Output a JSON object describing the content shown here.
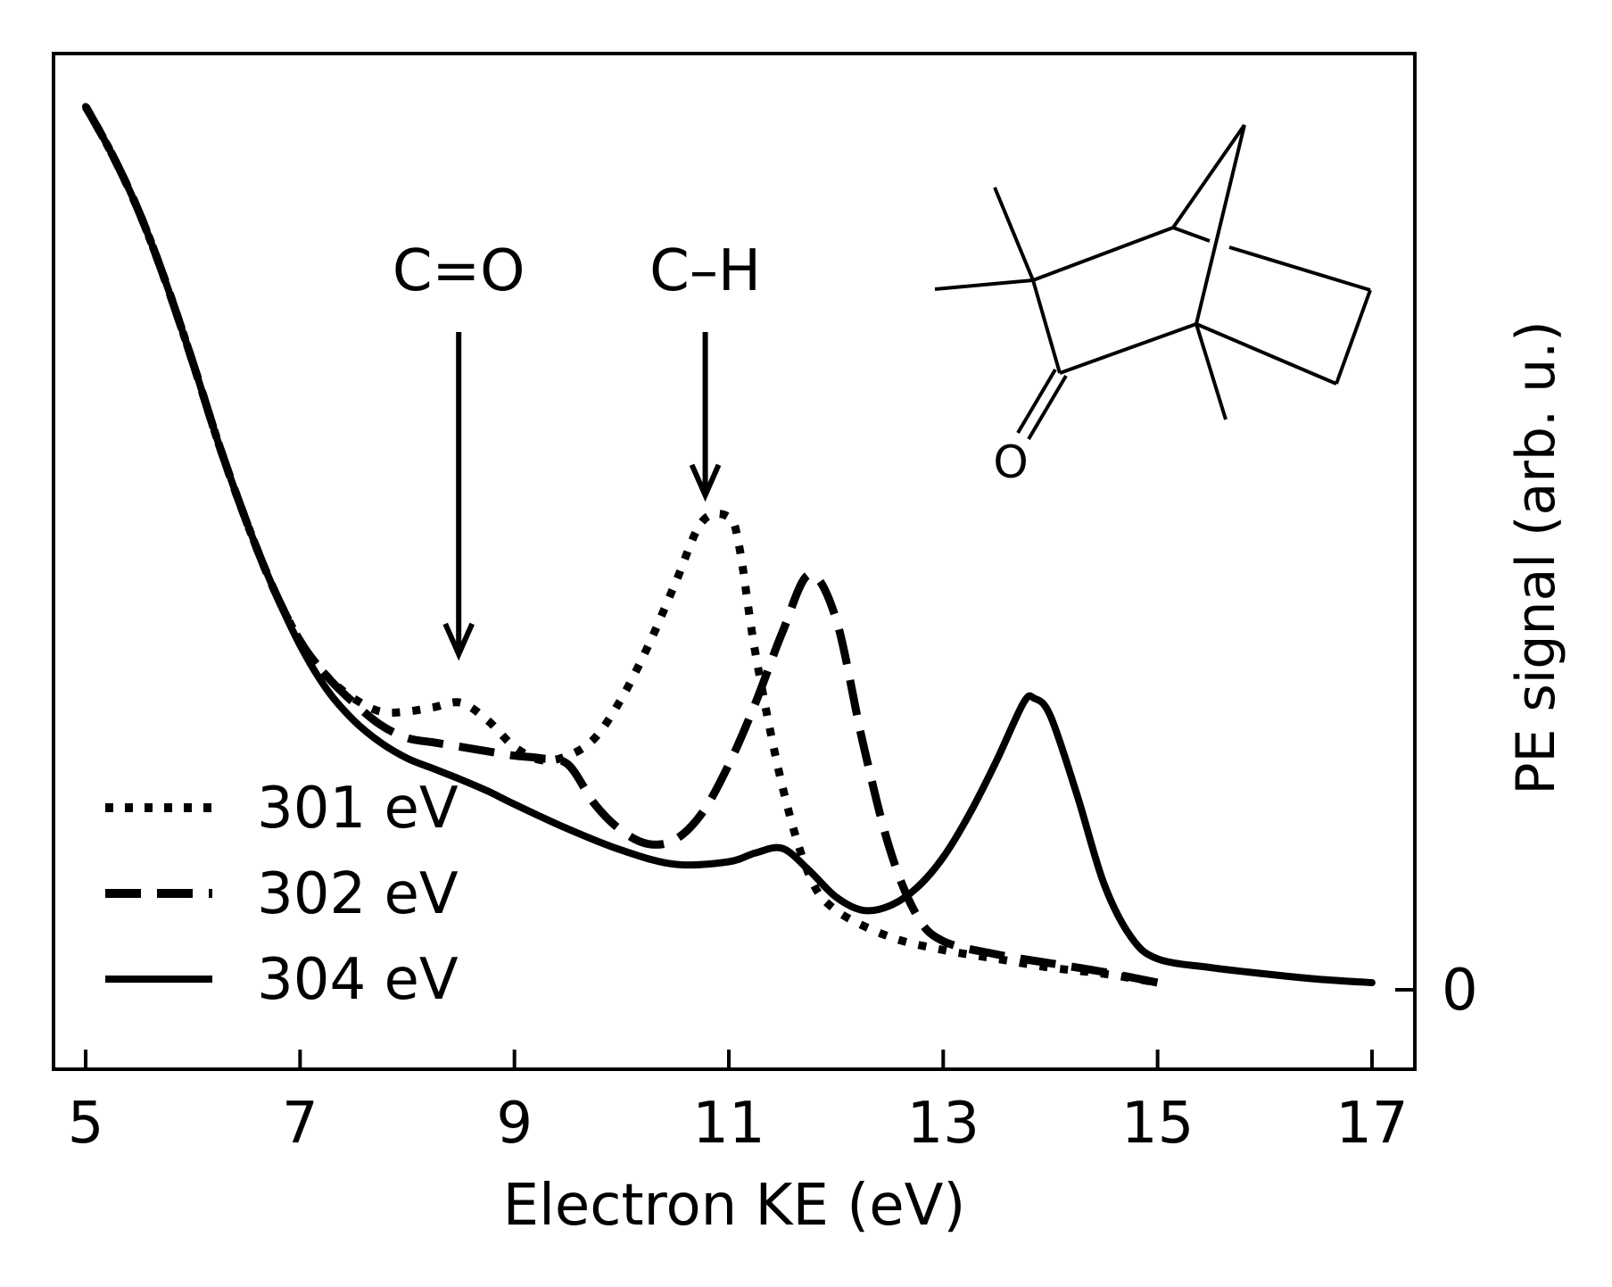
{
  "chart_data": {
    "type": "line",
    "title": "",
    "xlabel": "Electron KE (eV)",
    "ylabel": "PE signal (arb. u.)",
    "xlim": [
      4.7,
      17.4
    ],
    "ylim": [
      -0.09,
      1.06
    ],
    "x_ticks": [
      "5",
      "7",
      "9",
      "11",
      "13",
      "15",
      "17"
    ],
    "y_ticks": [
      "0"
    ],
    "y_axis_side": "right",
    "grid": false,
    "legend_position": "lower-left",
    "series": [
      {
        "name": "301 eV",
        "linestyle": "dotted",
        "color": "#000000",
        "x": [
          5.0,
          5.25,
          5.5,
          5.75,
          6.0,
          6.25,
          6.5,
          6.75,
          7.0,
          7.25,
          7.5,
          7.75,
          8.0,
          8.25,
          8.5,
          8.75,
          9.0,
          9.25,
          9.5,
          9.75,
          10.0,
          10.25,
          10.5,
          10.75,
          11.0,
          11.1,
          11.25,
          11.5,
          11.75,
          12.0,
          12.5,
          13.0,
          13.5,
          14.0,
          14.5,
          15.0
        ],
        "y": [
          1.0,
          0.945,
          0.88,
          0.8,
          0.71,
          0.615,
          0.53,
          0.455,
          0.395,
          0.355,
          0.33,
          0.315,
          0.315,
          0.32,
          0.325,
          0.305,
          0.275,
          0.26,
          0.265,
          0.285,
          0.33,
          0.39,
          0.46,
          0.53,
          0.535,
          0.5,
          0.38,
          0.23,
          0.13,
          0.09,
          0.06,
          0.045,
          0.035,
          0.025,
          0.018,
          0.008
        ]
      },
      {
        "name": "302 eV",
        "linestyle": "dashed",
        "color": "#000000",
        "x": [
          5.0,
          5.25,
          5.5,
          5.75,
          6.0,
          6.25,
          6.5,
          6.75,
          7.0,
          7.25,
          7.5,
          7.75,
          8.0,
          8.25,
          8.5,
          8.75,
          9.0,
          9.25,
          9.5,
          9.75,
          10.0,
          10.25,
          10.5,
          10.75,
          11.0,
          11.25,
          11.5,
          11.75,
          12.0,
          12.25,
          12.5,
          12.75,
          13.0,
          13.5,
          14.0,
          14.5,
          15.0
        ],
        "y": [
          1.0,
          0.945,
          0.88,
          0.8,
          0.71,
          0.615,
          0.53,
          0.455,
          0.395,
          0.355,
          0.325,
          0.3,
          0.285,
          0.28,
          0.275,
          0.27,
          0.265,
          0.262,
          0.255,
          0.21,
          0.18,
          0.165,
          0.17,
          0.2,
          0.255,
          0.325,
          0.405,
          0.47,
          0.42,
          0.28,
          0.16,
          0.085,
          0.055,
          0.04,
          0.03,
          0.02,
          0.008
        ]
      },
      {
        "name": "304 eV",
        "linestyle": "solid",
        "color": "#000000",
        "x": [
          5.0,
          5.25,
          5.5,
          5.75,
          6.0,
          6.25,
          6.5,
          6.75,
          7.0,
          7.25,
          7.5,
          7.75,
          8.0,
          8.25,
          8.5,
          8.75,
          9.0,
          9.5,
          10.0,
          10.5,
          11.0,
          11.25,
          11.5,
          11.75,
          12.0,
          12.25,
          12.5,
          12.75,
          13.0,
          13.25,
          13.5,
          13.75,
          13.85,
          14.0,
          14.25,
          14.5,
          14.75,
          15.0,
          15.5,
          16.0,
          16.5,
          17.0
        ],
        "y": [
          1.0,
          0.945,
          0.88,
          0.8,
          0.71,
          0.615,
          0.53,
          0.455,
          0.39,
          0.34,
          0.305,
          0.28,
          0.262,
          0.25,
          0.238,
          0.225,
          0.21,
          0.182,
          0.158,
          0.142,
          0.145,
          0.155,
          0.16,
          0.135,
          0.105,
          0.09,
          0.095,
          0.115,
          0.15,
          0.2,
          0.26,
          0.325,
          0.33,
          0.31,
          0.22,
          0.12,
          0.06,
          0.035,
          0.025,
          0.018,
          0.012,
          0.008
        ]
      }
    ],
    "annotations": [
      {
        "text": "C=O",
        "x": 8.48,
        "arrow_tip_y": 0.38
      },
      {
        "text": "C–H",
        "x": 10.78,
        "arrow_tip_y": 0.56
      }
    ],
    "inset": {
      "kind": "molecular-structure-drawing",
      "atom_label": "O"
    }
  }
}
